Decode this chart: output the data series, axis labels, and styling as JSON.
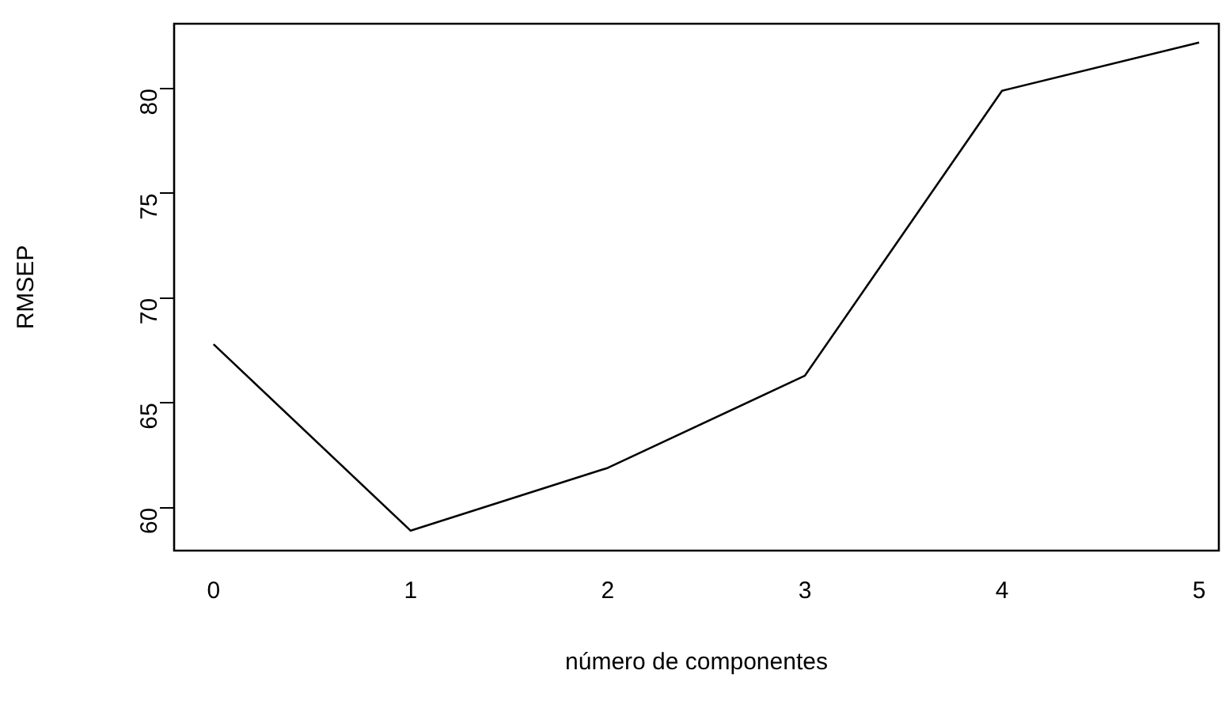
{
  "chart_data": {
    "type": "line",
    "xlabel": "número de componentes",
    "ylabel": "RMSEP",
    "x": [
      0,
      1,
      2,
      3,
      4,
      5
    ],
    "series": [
      {
        "color": "#000000",
        "values": [
          67.8,
          58.9,
          61.9,
          66.3,
          79.9,
          82.2
        ]
      }
    ],
    "xlim": [
      -0.2,
      5.1
    ],
    "xticks": [
      0,
      1,
      2,
      3,
      4,
      5
    ],
    "ylim": [
      57.95,
      83.1
    ],
    "yticks": [
      60,
      65,
      70,
      75,
      80
    ],
    "marker": "none",
    "line_style": "solid",
    "legend": false
  }
}
